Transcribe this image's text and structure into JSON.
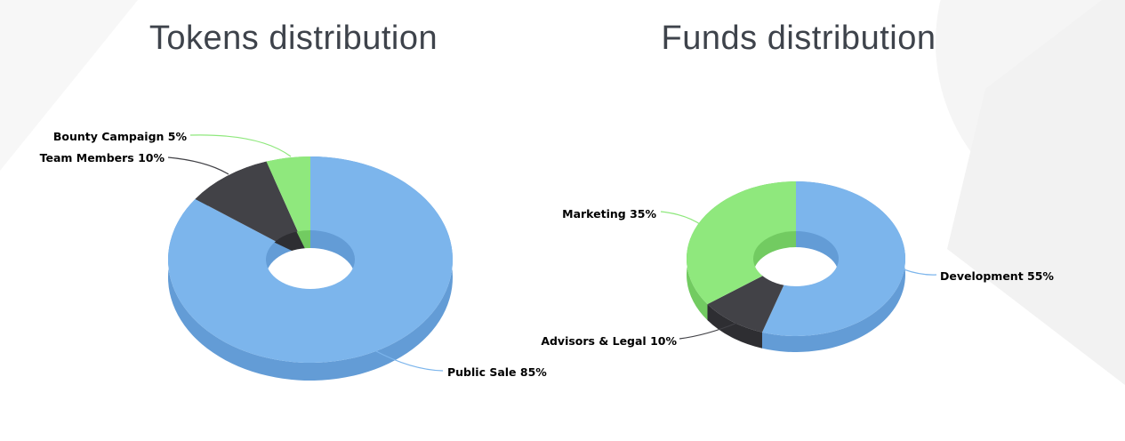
{
  "page": {
    "background": "#ffffff"
  },
  "decorations": {
    "triangle_top_left": "#f7f7f7",
    "circle_top_right": "#f5f5f5",
    "band_right": "#f2f2f2"
  },
  "chart_data": [
    {
      "type": "pie",
      "variant": "3d-donut",
      "title": "Tokens distribution",
      "direction": "clockwise",
      "start_angle_deg": 0,
      "legend": "none",
      "data_labels": "outside-with-connectors",
      "slices": [
        {
          "label": "Public Sale",
          "value": 85,
          "callout": "Public Sale 85%",
          "color": "#7CB5EC",
          "side_color": "#639CD6"
        },
        {
          "label": "Team Members",
          "value": 10,
          "callout": "Team Members 10%",
          "color": "#424247",
          "side_color": "#2E2E32"
        },
        {
          "label": "Bounty Campaign",
          "value": 5,
          "callout": "Bounty Campaign 5%",
          "color": "#8FE87D",
          "side_color": "#72CB61"
        }
      ]
    },
    {
      "type": "pie",
      "variant": "3d-donut",
      "title": "Funds distribution",
      "direction": "clockwise",
      "start_angle_deg": 0,
      "legend": "none",
      "data_labels": "outside-with-connectors",
      "slices": [
        {
          "label": "Development",
          "value": 55,
          "callout": "Development 55%",
          "color": "#7CB5EC",
          "side_color": "#639CD6"
        },
        {
          "label": "Advisors & Legal",
          "value": 10,
          "callout": "Advisors & Legal 10%",
          "color": "#424247",
          "side_color": "#2E2E32"
        },
        {
          "label": "Marketing",
          "value": 35,
          "callout": "Marketing 35%",
          "color": "#8FE87D",
          "side_color": "#72CB61"
        }
      ]
    }
  ]
}
